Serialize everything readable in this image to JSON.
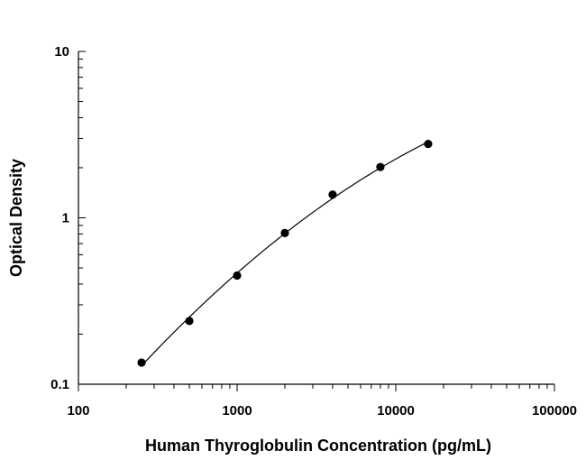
{
  "chart_data": {
    "type": "scatter",
    "title": "",
    "xlabel": "Human Thyroglobulin Concentration (pg/mL)",
    "ylabel": "Optical Density",
    "x_scale": "log",
    "y_scale": "log",
    "xlim": [
      100,
      100000
    ],
    "ylim": [
      0.1,
      10
    ],
    "x_tick_labels": [
      "100",
      "1000",
      "10000",
      "100000"
    ],
    "y_tick_labels": [
      "0.1",
      "1",
      "10"
    ],
    "grid": false,
    "legend": "none",
    "series": [
      {
        "x": [
          250,
          500,
          1000,
          2000,
          4000,
          8000,
          16000
        ],
        "y": [
          0.135,
          0.24,
          0.45,
          0.81,
          1.38,
          2.02,
          2.78
        ],
        "fit_line": true
      }
    ]
  }
}
